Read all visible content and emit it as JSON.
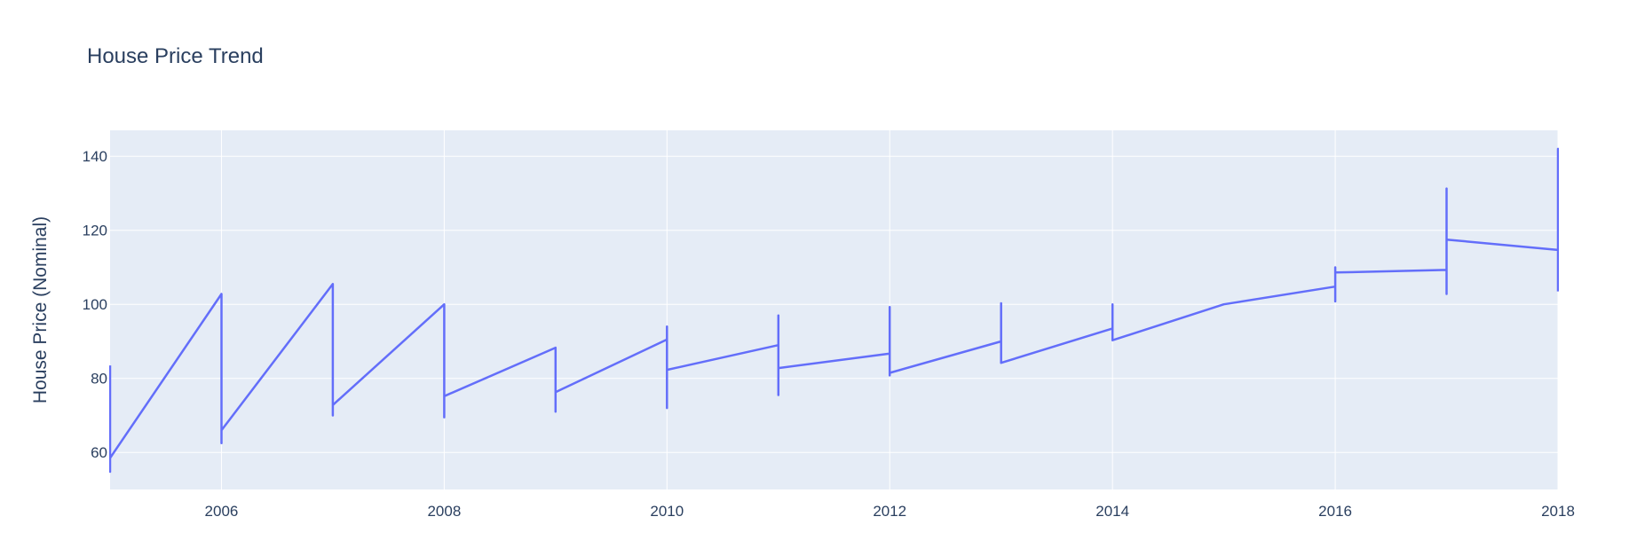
{
  "chart_data": {
    "type": "line",
    "title": "House Price Trend",
    "xlabel": "",
    "ylabel": "House Price (Nominal)",
    "xlim": [
      2005,
      2018
    ],
    "ylim": [
      50,
      147
    ],
    "x_ticks": [
      2006,
      2008,
      2010,
      2012,
      2014,
      2016,
      2018
    ],
    "y_ticks": [
      60,
      80,
      100,
      120,
      140
    ],
    "grid": true,
    "colors": {
      "line": "#636efa",
      "plot_bg": "#e5ecf6",
      "grid": "#ffffff",
      "text": "#2a3f5f"
    },
    "series": [
      {
        "points": [
          [
            2005,
            83.5
          ],
          [
            2005,
            54.8
          ],
          [
            2005,
            58.5
          ],
          [
            2006,
            102.8
          ],
          [
            2006,
            62.5
          ],
          [
            2006,
            66.0
          ],
          [
            2007,
            105.5
          ],
          [
            2007,
            70.0
          ],
          [
            2007,
            72.8
          ],
          [
            2008,
            100.0
          ],
          [
            2008,
            69.5
          ],
          [
            2008,
            75.2
          ],
          [
            2009,
            88.3
          ],
          [
            2009,
            71.0
          ],
          [
            2009,
            76.3
          ],
          [
            2010,
            90.5
          ],
          [
            2010,
            94.0
          ],
          [
            2010,
            72.0
          ],
          [
            2010,
            82.3
          ],
          [
            2011,
            89.0
          ],
          [
            2011,
            97.0
          ],
          [
            2011,
            75.5
          ],
          [
            2011,
            82.8
          ],
          [
            2012,
            86.7
          ],
          [
            2012,
            99.3
          ],
          [
            2012,
            80.8
          ],
          [
            2012,
            81.5
          ],
          [
            2013,
            90.0
          ],
          [
            2013,
            100.3
          ],
          [
            2013,
            84.2
          ],
          [
            2014,
            93.5
          ],
          [
            2014,
            100.0
          ],
          [
            2014,
            90.3
          ],
          [
            2015,
            100.0
          ],
          [
            2016,
            104.8
          ],
          [
            2016,
            110.0
          ],
          [
            2016,
            100.8
          ],
          [
            2016,
            108.6
          ],
          [
            2017,
            109.3
          ],
          [
            2017,
            131.3
          ],
          [
            2017,
            102.8
          ],
          [
            2017,
            117.5
          ],
          [
            2018,
            114.7
          ],
          [
            2018,
            142.0
          ],
          [
            2018,
            103.5
          ]
        ]
      }
    ]
  }
}
